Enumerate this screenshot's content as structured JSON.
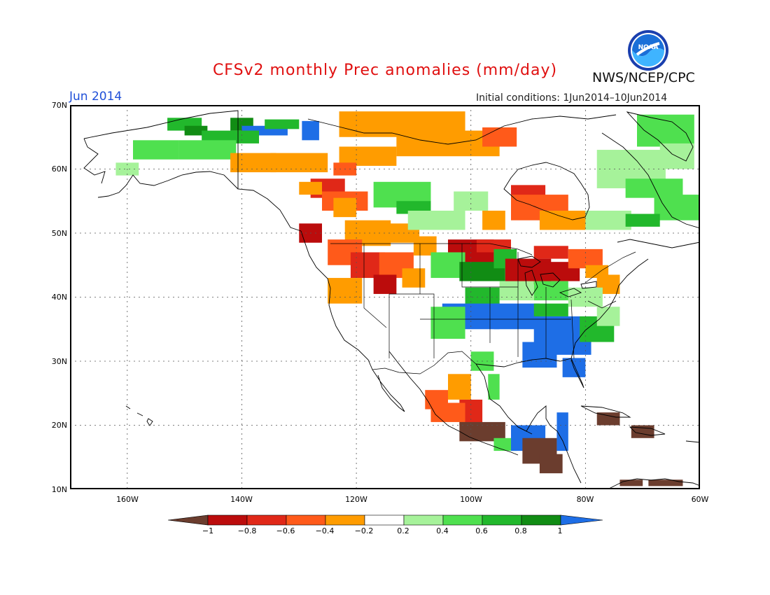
{
  "header": {
    "title": "CFSv2 monthly Prec anomalies (mm/day)",
    "month": "Jun 2014",
    "initial_conditions": "Initial conditions: 1Jun2014–10Jun2014",
    "agency": "NWS/NCEP/CPC",
    "logo_icon": "noaa-logo-icon",
    "logo_text": "NOAA"
  },
  "map": {
    "lon_range": [
      -170,
      -60
    ],
    "lat_range": [
      10,
      70
    ],
    "lat_labels": [
      "70N",
      "60N",
      "50N",
      "40N",
      "30N",
      "20N",
      "10N"
    ],
    "lon_labels": [
      "160W",
      "140W",
      "120W",
      "100W",
      "80W",
      "60W"
    ]
  },
  "legend": {
    "labels": [
      "−1",
      "−0.8",
      "−0.6",
      "−0.4",
      "−0.2",
      "0.2",
      "0.4",
      "0.6",
      "0.8",
      "1"
    ],
    "colors": [
      "#6b3d2e",
      "#bb0c0c",
      "#e02818",
      "#ff5a1a",
      "#ff9c00",
      "#ffffff",
      "#a6f29a",
      "#4fe04f",
      "#22b82c",
      "#118c14",
      "#1e6ee6"
    ]
  }
}
